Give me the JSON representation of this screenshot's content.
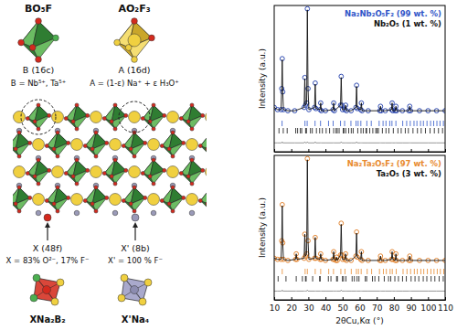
{
  "diagram": {
    "polyhedra": [
      {
        "formula": "BO₅F",
        "site": "B (16c)",
        "occupancy": "B = Nb⁵⁺, Ta⁵⁺"
      },
      {
        "formula": "AO₂F₃",
        "site": "A (16d)",
        "occupancy": "A = (1-ε) Na⁺ + ε H₃O⁺"
      }
    ],
    "anions": [
      {
        "site": "X (48f)",
        "occupancy": "X = 83% O²⁻, 17% F⁻",
        "environment": "XNa₂B₂"
      },
      {
        "site": "X' (8b)",
        "occupancy": "X' = 100 % F⁻",
        "environment": "X'Na₄"
      }
    ]
  },
  "chart_data": [
    {
      "type": "line",
      "ylabel": "Intensity (a.u.)",
      "xlim": [
        10,
        110
      ],
      "ylim": [
        -32,
        100
      ],
      "xticks": [
        10,
        20,
        30,
        40,
        50,
        60,
        70,
        80,
        90,
        100,
        110
      ],
      "tick_labels": false,
      "legend": "upper right",
      "series": [
        {
          "type": "scatter",
          "marker": "open-circle",
          "color": "#1c3aa9",
          "x": [
            10,
            12,
            14,
            14.4,
            14.7,
            15.0,
            15.4,
            18,
            22,
            27.5,
            27.9,
            28.3,
            29.0,
            29.4,
            29.8,
            30.3,
            33.6,
            34.0,
            34.4,
            36.8,
            37.2,
            37.6,
            40,
            44.4,
            44.8,
            45.2,
            48.8,
            49.2,
            49.6,
            50,
            51.3,
            51.8,
            52.3,
            55,
            57.8,
            58.2,
            58.6,
            60.6,
            61.0,
            61.4,
            65,
            71.8,
            72.2,
            72.6,
            75,
            78.6,
            79.0,
            79.4,
            80.8,
            81.2,
            81.6,
            85,
            88.8,
            89.3,
            89.8,
            95,
            100,
            105,
            110
          ],
          "values": [
            8,
            6,
            6,
            25,
            52,
            22,
            6,
            5,
            5,
            8,
            35,
            10,
            12,
            97,
            25,
            6,
            8,
            30,
            7,
            6,
            12,
            5,
            5,
            6,
            12,
            5,
            10,
            36,
            10,
            6,
            6,
            10,
            5,
            5,
            8,
            28,
            7,
            6,
            12,
            5,
            5,
            5,
            9,
            5,
            5,
            6,
            12,
            5,
            5,
            9,
            5,
            5,
            5,
            9,
            5,
            5,
            5,
            5,
            5
          ]
        },
        {
          "type": "line",
          "color": "#111111",
          "x": [
            10,
            12,
            14,
            14.4,
            14.7,
            15.0,
            15.4,
            18,
            22,
            27.5,
            27.9,
            28.3,
            29.0,
            29.4,
            29.8,
            30.3,
            33.6,
            34.0,
            34.4,
            36.8,
            37.2,
            37.6,
            40,
            44.4,
            44.8,
            45.2,
            48.8,
            49.2,
            49.6,
            50,
            51.3,
            51.8,
            52.3,
            55,
            57.8,
            58.2,
            58.6,
            60.6,
            61.0,
            61.4,
            65,
            71.8,
            72.2,
            72.6,
            75,
            78.6,
            79.0,
            79.4,
            80.8,
            81.2,
            81.6,
            85,
            88.8,
            89.3,
            89.8,
            95,
            100,
            105,
            110
          ],
          "values": [
            8,
            6,
            6,
            25,
            51,
            22,
            6,
            5,
            5,
            8,
            34,
            10,
            12,
            96,
            25,
            6,
            8,
            29,
            7,
            6,
            12,
            5,
            5,
            6,
            12,
            5,
            10,
            35,
            10,
            6,
            6,
            10,
            5,
            5,
            8,
            27,
            7,
            6,
            12,
            5,
            5,
            5,
            9,
            5,
            5,
            6,
            12,
            5,
            5,
            9,
            5,
            5,
            5,
            9,
            5,
            5,
            5,
            5,
            5
          ]
        },
        {
          "type": "line",
          "color": "#8a8a8a",
          "x": [
            10,
            12,
            14,
            14.4,
            14.7,
            15.0,
            15.4,
            18,
            22,
            27.5,
            27.9,
            28.3,
            29.0,
            29.4,
            29.8,
            30.3,
            33.6,
            34.0,
            34.4,
            36.8,
            37.2,
            37.6,
            40,
            44.4,
            44.8,
            45.2,
            48.8,
            49.2,
            49.6,
            50,
            51.3,
            51.8,
            52.3,
            55,
            57.8,
            58.2,
            58.6,
            60.6,
            61.0,
            61.4,
            65,
            71.8,
            72.2,
            72.6,
            75,
            78.6,
            79.0,
            79.4,
            80.8,
            81.2,
            81.6,
            85,
            88.8,
            89.3,
            89.8,
            95,
            100,
            105,
            110
          ],
          "values": [
            -24,
            -24,
            -24,
            -24,
            -23,
            -24,
            -24,
            -24,
            -24,
            -24,
            -23,
            -24,
            -24,
            -23,
            -24,
            -24,
            -24,
            -23,
            -24,
            -24,
            -24,
            -24,
            -24,
            -24,
            -24,
            -24,
            -24,
            -23,
            -24,
            -24,
            -24,
            -24,
            -24,
            -24,
            -24,
            -23,
            -24,
            -24,
            -24,
            -24,
            -24,
            -24,
            -24,
            -24,
            -24,
            -24,
            -24,
            -24,
            -24,
            -24,
            -24,
            -24,
            -24,
            -24,
            -24,
            -24,
            -24,
            -24,
            -24
          ]
        },
        {
          "type": "bragg",
          "name": "Na₂Nb₂O₅F₂ (99 wt. %)",
          "color": "#2f55c8",
          "x": [
            14.6,
            28.0,
            29.3,
            33.9,
            37.1,
            41.8,
            44.5,
            48.8,
            51.2,
            54.9,
            57.9,
            59.1,
            60.7,
            64.2,
            66.8,
            71.4,
            73.7,
            75.4,
            77.6,
            78.9,
            81.2,
            85.2,
            87.5,
            89.6,
            91.8,
            93.5,
            95.6,
            97.3,
            99.4,
            101.5,
            103.3,
            105.2,
            107.0,
            109.0
          ]
        },
        {
          "type": "bragg",
          "name": "Nb₂O₅ (1 wt. %)",
          "color": "#111111",
          "x": [
            12.8,
            15.3,
            17.6,
            22.6,
            23.7,
            25.3,
            26.1,
            28.4,
            28.9,
            31.2,
            32.3,
            34.7,
            36.6,
            38.2,
            40.4,
            42.4,
            44.8,
            46.2,
            46.9,
            48.0,
            50.4,
            50.8,
            51.9,
            53.6,
            55.1,
            56.2,
            58.9,
            60.8,
            62.1,
            63.7,
            64.1,
            65.9,
            67.7,
            69.4,
            70.2,
            71.0,
            73.3,
            75.4,
            77.1,
            79.7,
            82.4,
            84.3,
            86.7,
            88.5,
            91.2,
            93.8,
            96.0,
            98.5,
            101.2,
            103.7,
            106.1,
            108.5
          ]
        }
      ]
    },
    {
      "type": "line",
      "ylabel": "Intensity (a.u.)",
      "xlabel": "2θCu,Kα (°)",
      "xlim": [
        10,
        110
      ],
      "ylim": [
        -32,
        100
      ],
      "xticks": [
        10,
        20,
        30,
        40,
        50,
        60,
        70,
        80,
        90,
        100,
        110
      ],
      "tick_labels": "x",
      "legend": "upper right",
      "series": [
        {
          "type": "scatter",
          "marker": "open-circle",
          "color": "#e07b20",
          "x": [
            10,
            12,
            14,
            14.4,
            14.7,
            15.0,
            15.4,
            18,
            22.5,
            22.9,
            23.3,
            27.5,
            27.9,
            28.3,
            29.0,
            29.4,
            29.8,
            30.3,
            33.6,
            34.0,
            34.4,
            36.8,
            37.2,
            37.6,
            40,
            44.4,
            44.8,
            45.2,
            46.1,
            46.5,
            46.9,
            48.8,
            49.2,
            49.6,
            50,
            51.3,
            51.8,
            52.3,
            55,
            57.8,
            58.2,
            58.6,
            60.6,
            61.0,
            61.4,
            65,
            71.8,
            72.2,
            72.6,
            75,
            78.6,
            79.0,
            79.4,
            80.8,
            81.2,
            81.6,
            85,
            88.8,
            89.3,
            89.8,
            95,
            100,
            105,
            110
          ],
          "values": [
            6,
            5,
            5,
            22,
            55,
            20,
            5,
            4,
            5,
            10,
            5,
            6,
            28,
            8,
            10,
            97,
            22,
            5,
            6,
            25,
            6,
            5,
            10,
            5,
            4,
            5,
            12,
            5,
            4,
            7,
            4,
            9,
            38,
            9,
            5,
            5,
            10,
            4,
            4,
            8,
            30,
            7,
            5,
            12,
            4,
            4,
            4,
            8,
            4,
            4,
            5,
            12,
            5,
            4,
            10,
            4,
            4,
            4,
            8,
            4,
            4,
            4,
            4,
            4
          ]
        },
        {
          "type": "line",
          "color": "#111111",
          "x": [
            10,
            12,
            14,
            14.4,
            14.7,
            15.0,
            15.4,
            18,
            22.5,
            22.9,
            23.3,
            27.5,
            27.9,
            28.3,
            29.0,
            29.4,
            29.8,
            30.3,
            33.6,
            34.0,
            34.4,
            36.8,
            37.2,
            37.6,
            40,
            44.4,
            44.8,
            45.2,
            46.1,
            46.5,
            46.9,
            48.8,
            49.2,
            49.6,
            50,
            51.3,
            51.8,
            52.3,
            55,
            57.8,
            58.2,
            58.6,
            60.6,
            61.0,
            61.4,
            65,
            71.8,
            72.2,
            72.6,
            75,
            78.6,
            79.0,
            79.4,
            80.8,
            81.2,
            81.6,
            85,
            88.8,
            89.3,
            89.8,
            95,
            100,
            105,
            110
          ],
          "values": [
            6,
            5,
            5,
            22,
            54,
            20,
            5,
            4,
            5,
            10,
            5,
            6,
            28,
            8,
            10,
            96,
            22,
            5,
            6,
            25,
            6,
            5,
            10,
            5,
            4,
            5,
            12,
            5,
            4,
            7,
            4,
            9,
            37,
            9,
            5,
            5,
            10,
            4,
            4,
            8,
            29,
            7,
            5,
            12,
            4,
            4,
            4,
            8,
            4,
            4,
            5,
            12,
            5,
            4,
            10,
            4,
            4,
            4,
            8,
            4,
            4,
            4,
            4,
            4
          ]
        },
        {
          "type": "line",
          "color": "#8a8a8a",
          "x": [
            10,
            12,
            14,
            14.4,
            14.7,
            15.0,
            15.4,
            18,
            22.5,
            22.9,
            23.3,
            27.5,
            27.9,
            28.3,
            29.0,
            29.4,
            29.8,
            30.3,
            33.6,
            34.0,
            34.4,
            36.8,
            37.2,
            37.6,
            40,
            44.4,
            44.8,
            45.2,
            46.1,
            46.5,
            46.9,
            48.8,
            49.2,
            49.6,
            50,
            51.3,
            51.8,
            52.3,
            55,
            57.8,
            58.2,
            58.6,
            60.6,
            61.0,
            61.4,
            65,
            71.8,
            72.2,
            72.6,
            75,
            78.6,
            79.0,
            79.4,
            80.8,
            81.2,
            81.6,
            85,
            88.8,
            89.3,
            89.8,
            95,
            100,
            105,
            110
          ],
          "values": [
            -24,
            -24,
            -24,
            -24,
            -23,
            -24,
            -24,
            -24,
            -24,
            -24,
            -24,
            -24,
            -24,
            -24,
            -24,
            -23,
            -24,
            -24,
            -24,
            -24,
            -24,
            -24,
            -24,
            -24,
            -24,
            -24,
            -24,
            -24,
            -24,
            -24,
            -24,
            -24,
            -23,
            -24,
            -24,
            -24,
            -24,
            -24,
            -24,
            -24,
            -24,
            -24,
            -24,
            -24,
            -24,
            -24,
            -24,
            -24,
            -24,
            -24,
            -24,
            -24,
            -24,
            -24,
            -24,
            -24,
            -24,
            -24,
            -24,
            -24,
            -24,
            -24,
            -24,
            -24
          ]
        },
        {
          "type": "bragg",
          "name": "Na₂Ta₂O₅F₂ (97 wt. %)",
          "color": "#e88a2e",
          "x": [
            14.7,
            28.1,
            29.4,
            34.0,
            37.2,
            41.9,
            44.7,
            49.0,
            51.4,
            55.1,
            58.1,
            59.3,
            60.9,
            64.4,
            67.0,
            71.6,
            73.9,
            75.6,
            77.8,
            79.1,
            81.4,
            85.4,
            87.7,
            89.8,
            92.0,
            93.7,
            95.8,
            97.5,
            99.6,
            101.7,
            103.5,
            105.4,
            107.2,
            109.2
          ]
        },
        {
          "type": "bragg",
          "name": "Ta₂O₅ (3 wt. %)",
          "color": "#111111",
          "x": [
            12.3,
            16.9,
            22.9,
            26.5,
            28.3,
            28.7,
            32.5,
            36.6,
            36.9,
            41.7,
            43.2,
            46.5,
            47.0,
            49.9,
            50.6,
            52.0,
            55.6,
            56.9,
            58.5,
            59.6,
            63.3,
            64.1,
            67.5,
            68.9,
            71.2,
            74.4,
            76.9,
            78.2,
            80.6,
            82.7,
            85.1,
            87.3,
            90.1,
            92.4,
            94.6,
            97.2,
            99.3,
            101.8,
            104.0,
            106.5,
            108.9
          ]
        }
      ]
    }
  ]
}
